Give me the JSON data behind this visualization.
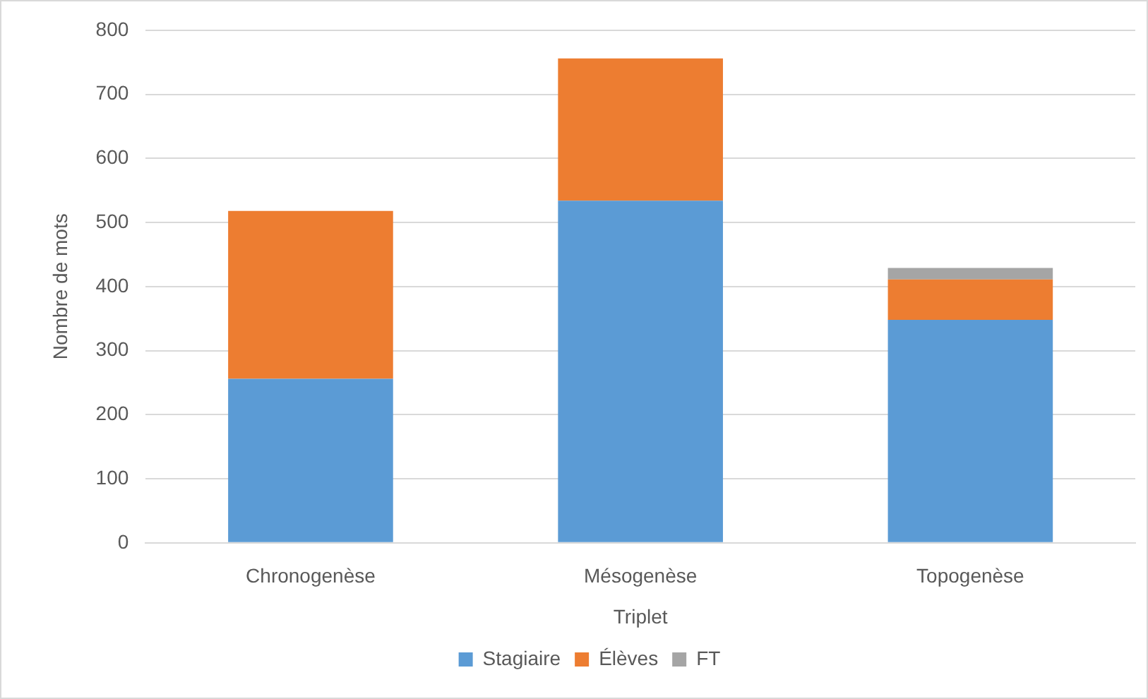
{
  "chart_data": {
    "type": "bar",
    "stacked": true,
    "xlabel": "Triplet",
    "ylabel": "Nombre de mots",
    "categories": [
      "Chronogenèse",
      "Mésogenèse",
      "Topogenèse"
    ],
    "series": [
      {
        "name": "Stagiaire",
        "color": "#5b9bd5",
        "values": [
          256,
          534,
          348
        ]
      },
      {
        "name": "Élèves",
        "color": "#ed7d31",
        "values": [
          262,
          222,
          63
        ]
      },
      {
        "name": "FT",
        "color": "#a5a5a5",
        "values": [
          null,
          null,
          18
        ]
      }
    ],
    "ylim": [
      0,
      800
    ],
    "yticks": [
      0,
      100,
      200,
      300,
      400,
      500,
      600,
      700,
      800
    ],
    "grid": "y",
    "legend": "bottom"
  }
}
